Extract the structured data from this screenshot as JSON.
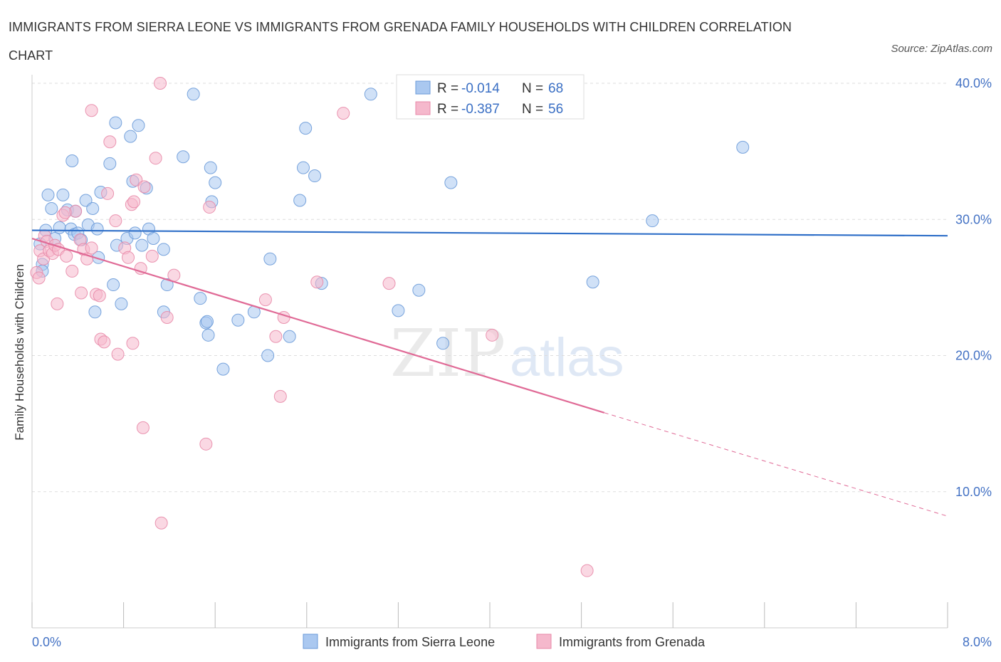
{
  "title": "IMMIGRANTS FROM SIERRA LEONE VS IMMIGRANTS FROM GRENADA FAMILY HOUSEHOLDS WITH CHILDREN CORRELATION CHART",
  "source": "Source: ZipAtlas.com",
  "watermark": {
    "zip": "ZIP",
    "atlas": "atlas"
  },
  "colors": {
    "blue_fill": "#aac8f0",
    "blue_stroke": "#6a9ad8",
    "blue_line": "#2f6fc8",
    "pink_fill": "#f5b8cc",
    "pink_stroke": "#e889a8",
    "pink_line": "#e06a96",
    "grid": "#dddddd",
    "tick_text": "#4472c4"
  },
  "stats": [
    {
      "r_label": "R =",
      "r_value": "-0.014",
      "n_label": "N =",
      "n_value": "68"
    },
    {
      "r_label": "R =",
      "r_value": "-0.387",
      "n_label": "N =",
      "n_value": "56"
    }
  ],
  "legend": [
    "Immigrants from Sierra Leone",
    "Immigrants from Grenada"
  ],
  "chart_data": {
    "type": "scatter",
    "title": "IMMIGRANTS FROM SIERRA LEONE VS IMMIGRANTS FROM GRENADA FAMILY HOUSEHOLDS WITH CHILDREN CORRELATION CHART",
    "xlabel": "",
    "ylabel": "Family Households with Children",
    "xlim": [
      0,
      8
    ],
    "ylim": [
      0,
      40
    ],
    "x_tick_labels": [
      "0.0%",
      "8.0%"
    ],
    "y_ticks": [
      10,
      20,
      30,
      40
    ],
    "y_tick_labels": [
      "10.0%",
      "20.0%",
      "30.0%",
      "40.0%"
    ],
    "legend_position": "bottom-center",
    "grid": true,
    "series": [
      {
        "name": "Immigrants from Sierra Leone",
        "color": "#aac8f0",
        "trend": {
          "x0": 0.0,
          "y0": 29.2,
          "x1": 8.0,
          "y1": 28.8
        },
        "points": [
          [
            0.07,
            28.2
          ],
          [
            0.09,
            26.7
          ],
          [
            0.09,
            26.2
          ],
          [
            0.12,
            29.2
          ],
          [
            0.14,
            31.8
          ],
          [
            0.17,
            30.8
          ],
          [
            0.2,
            28.6
          ],
          [
            0.24,
            29.4
          ],
          [
            0.27,
            31.8
          ],
          [
            0.31,
            30.7
          ],
          [
            0.34,
            29.3
          ],
          [
            0.37,
            28.9
          ],
          [
            0.38,
            30.6
          ],
          [
            0.4,
            29.0
          ],
          [
            0.43,
            28.5
          ],
          [
            0.47,
            31.4
          ],
          [
            0.49,
            29.6
          ],
          [
            0.53,
            30.8
          ],
          [
            0.57,
            29.3
          ],
          [
            0.58,
            27.2
          ],
          [
            0.71,
            25.2
          ],
          [
            0.74,
            28.1
          ],
          [
            0.83,
            28.6
          ],
          [
            0.9,
            29.0
          ],
          [
            0.96,
            28.1
          ],
          [
            1.02,
            29.3
          ],
          [
            1.06,
            28.6
          ],
          [
            0.35,
            34.3
          ],
          [
            0.68,
            34.1
          ],
          [
            0.73,
            37.1
          ],
          [
            0.86,
            36.1
          ],
          [
            0.93,
            36.9
          ],
          [
            0.88,
            32.8
          ],
          [
            1.0,
            32.3
          ],
          [
            0.6,
            32.0
          ],
          [
            1.15,
            27.8
          ],
          [
            1.32,
            34.6
          ],
          [
            1.41,
            39.2
          ],
          [
            1.56,
            33.8
          ],
          [
            1.6,
            32.7
          ],
          [
            1.57,
            31.3
          ],
          [
            1.47,
            24.2
          ],
          [
            1.52,
            22.4
          ],
          [
            1.53,
            22.5
          ],
          [
            1.54,
            21.5
          ],
          [
            1.18,
            25.2
          ],
          [
            1.15,
            23.2
          ],
          [
            0.78,
            23.8
          ],
          [
            0.55,
            23.2
          ],
          [
            1.8,
            22.6
          ],
          [
            1.94,
            23.2
          ],
          [
            1.67,
            19.0
          ],
          [
            2.08,
            27.1
          ],
          [
            2.06,
            20.0
          ],
          [
            2.25,
            21.4
          ],
          [
            2.39,
            36.7
          ],
          [
            2.34,
            31.4
          ],
          [
            2.37,
            33.8
          ],
          [
            2.47,
            33.2
          ],
          [
            2.53,
            25.3
          ],
          [
            3.2,
            23.3
          ],
          [
            3.38,
            24.8
          ],
          [
            3.59,
            20.9
          ],
          [
            3.66,
            32.7
          ],
          [
            4.9,
            25.4
          ],
          [
            5.42,
            29.9
          ],
          [
            6.21,
            35.3
          ],
          [
            2.96,
            39.2
          ]
        ]
      },
      {
        "name": "Immigrants from Grenada",
        "color": "#f5b8cc",
        "trend": {
          "x0": 0.0,
          "y0": 28.6,
          "x1": 5.0,
          "y1": 15.8,
          "dash_x1": 8.0,
          "dash_y1": 8.2
        },
        "points": [
          [
            0.04,
            26.1
          ],
          [
            0.06,
            25.7
          ],
          [
            0.07,
            27.7
          ],
          [
            0.1,
            27.1
          ],
          [
            0.11,
            28.8
          ],
          [
            0.13,
            28.4
          ],
          [
            0.15,
            27.7
          ],
          [
            0.18,
            27.5
          ],
          [
            0.2,
            28.1
          ],
          [
            0.23,
            27.8
          ],
          [
            0.27,
            30.3
          ],
          [
            0.3,
            27.3
          ],
          [
            0.35,
            26.2
          ],
          [
            0.38,
            30.6
          ],
          [
            0.42,
            28.5
          ],
          [
            0.45,
            27.8
          ],
          [
            0.48,
            27.1
          ],
          [
            0.52,
            27.9
          ],
          [
            0.56,
            24.5
          ],
          [
            0.6,
            21.2
          ],
          [
            0.63,
            21.0
          ],
          [
            0.66,
            31.9
          ],
          [
            0.68,
            35.7
          ],
          [
            0.73,
            29.9
          ],
          [
            0.75,
            20.1
          ],
          [
            0.81,
            27.9
          ],
          [
            0.84,
            27.2
          ],
          [
            0.87,
            31.1
          ],
          [
            0.89,
            31.3
          ],
          [
            0.91,
            32.9
          ],
          [
            0.95,
            26.4
          ],
          [
            0.98,
            32.4
          ],
          [
            1.05,
            27.3
          ],
          [
            1.08,
            34.5
          ],
          [
            1.12,
            40.0
          ],
          [
            1.18,
            22.8
          ],
          [
            1.24,
            25.9
          ],
          [
            0.22,
            23.8
          ],
          [
            0.43,
            24.6
          ],
          [
            0.52,
            38.0
          ],
          [
            0.59,
            24.4
          ],
          [
            0.88,
            20.9
          ],
          [
            0.97,
            14.7
          ],
          [
            1.13,
            7.7
          ],
          [
            1.52,
            13.5
          ],
          [
            1.55,
            30.9
          ],
          [
            2.04,
            24.1
          ],
          [
            2.13,
            21.4
          ],
          [
            2.17,
            17.0
          ],
          [
            2.2,
            22.8
          ],
          [
            2.49,
            25.4
          ],
          [
            2.72,
            37.8
          ],
          [
            3.12,
            25.3
          ],
          [
            4.02,
            21.5
          ],
          [
            4.85,
            4.2
          ],
          [
            0.29,
            30.5
          ]
        ]
      }
    ]
  }
}
